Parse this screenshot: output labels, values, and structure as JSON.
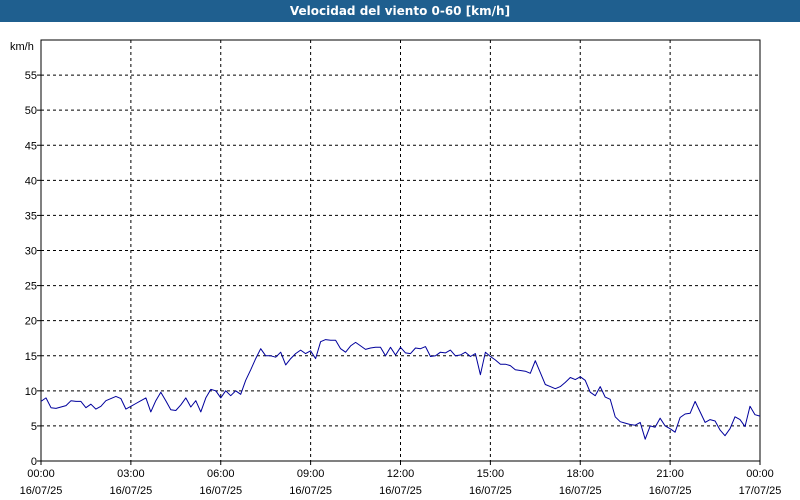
{
  "window": {
    "title": "Velocidad del viento 0-60 [km/h]"
  },
  "chart_data": {
    "type": "line",
    "title": "Velocidad del viento 0-60 [km/h]",
    "ylabel": "km/h",
    "xlabel": "",
    "ylim": [
      0,
      60
    ],
    "yticks": [
      0,
      5,
      10,
      15,
      20,
      25,
      30,
      35,
      40,
      45,
      50,
      55
    ],
    "xlim": [
      "16/07/25 00:00",
      "17/07/25 00:00"
    ],
    "xticks": [
      {
        "time": "00:00",
        "date": "16/07/25"
      },
      {
        "time": "03:00",
        "date": "16/07/25"
      },
      {
        "time": "06:00",
        "date": "16/07/25"
      },
      {
        "time": "09:00",
        "date": "16/07/25"
      },
      {
        "time": "12:00",
        "date": "16/07/25"
      },
      {
        "time": "15:00",
        "date": "16/07/25"
      },
      {
        "time": "18:00",
        "date": "16/07/25"
      },
      {
        "time": "21:00",
        "date": "16/07/25"
      },
      {
        "time": "00:00",
        "date": "17/07/25"
      }
    ],
    "grid": true,
    "series": [
      {
        "color": "#00009c",
        "points": [
          [
            "00:00",
            8.5
          ],
          [
            "00:10",
            9.0
          ],
          [
            "00:20",
            7.6
          ],
          [
            "00:30",
            7.5
          ],
          [
            "00:40",
            7.7
          ],
          [
            "00:50",
            7.9
          ],
          [
            "01:00",
            8.6
          ],
          [
            "01:10",
            8.5
          ],
          [
            "01:20",
            8.5
          ],
          [
            "01:30",
            7.6
          ],
          [
            "01:40",
            8.1
          ],
          [
            "01:50",
            7.4
          ],
          [
            "02:00",
            7.8
          ],
          [
            "02:10",
            8.6
          ],
          [
            "02:20",
            8.9
          ],
          [
            "02:30",
            9.2
          ],
          [
            "02:40",
            8.9
          ],
          [
            "02:50",
            7.4
          ],
          [
            "03:00",
            7.8
          ],
          [
            "03:10",
            8.2
          ],
          [
            "03:20",
            8.6
          ],
          [
            "03:30",
            9.0
          ],
          [
            "03:40",
            7.0
          ],
          [
            "03:50",
            8.6
          ],
          [
            "04:00",
            9.8
          ],
          [
            "04:10",
            8.6
          ],
          [
            "04:20",
            7.3
          ],
          [
            "04:30",
            7.2
          ],
          [
            "04:40",
            8.0
          ],
          [
            "04:50",
            9.0
          ],
          [
            "05:00",
            7.7
          ],
          [
            "05:10",
            8.6
          ],
          [
            "05:20",
            7.0
          ],
          [
            "05:30",
            9.0
          ],
          [
            "05:40",
            10.2
          ],
          [
            "05:50",
            10.0
          ],
          [
            "06:00",
            9.0
          ],
          [
            "06:10",
            10.0
          ],
          [
            "06:20",
            9.3
          ],
          [
            "06:30",
            10.0
          ],
          [
            "06:40",
            9.5
          ],
          [
            "06:50",
            11.5
          ],
          [
            "07:00",
            13.0
          ],
          [
            "07:10",
            14.6
          ],
          [
            "07:20",
            16.0
          ],
          [
            "07:30",
            15.0
          ],
          [
            "07:40",
            15.0
          ],
          [
            "07:50",
            14.8
          ],
          [
            "08:00",
            15.5
          ],
          [
            "08:10",
            13.7
          ],
          [
            "08:20",
            14.6
          ],
          [
            "08:30",
            15.3
          ],
          [
            "08:40",
            15.8
          ],
          [
            "08:50",
            15.3
          ],
          [
            "09:00",
            15.7
          ],
          [
            "09:10",
            14.6
          ],
          [
            "09:20",
            17.0
          ],
          [
            "09:30",
            17.3
          ],
          [
            "09:40",
            17.2
          ],
          [
            "09:50",
            17.2
          ],
          [
            "10:00",
            16.0
          ],
          [
            "10:10",
            15.5
          ],
          [
            "10:20",
            16.4
          ],
          [
            "10:30",
            16.9
          ],
          [
            "10:40",
            16.4
          ],
          [
            "10:50",
            15.9
          ],
          [
            "11:00",
            16.1
          ],
          [
            "11:10",
            16.2
          ],
          [
            "11:20",
            16.2
          ],
          [
            "11:30",
            15.0
          ],
          [
            "11:40",
            16.2
          ],
          [
            "11:50",
            15.1
          ],
          [
            "12:00",
            16.2
          ],
          [
            "12:10",
            15.4
          ],
          [
            "12:20",
            15.3
          ],
          [
            "12:30",
            16.1
          ],
          [
            "12:40",
            16.0
          ],
          [
            "12:50",
            16.3
          ],
          [
            "13:00",
            14.9
          ],
          [
            "13:10",
            15.0
          ],
          [
            "13:20",
            15.5
          ],
          [
            "13:30",
            15.4
          ],
          [
            "13:40",
            15.8
          ],
          [
            "13:50",
            15.0
          ],
          [
            "14:00",
            15.1
          ],
          [
            "14:10",
            15.5
          ],
          [
            "14:20",
            14.9
          ],
          [
            "14:30",
            15.3
          ],
          [
            "14:40",
            12.3
          ],
          [
            "14:50",
            15.5
          ],
          [
            "15:00",
            14.9
          ],
          [
            "15:10",
            14.4
          ],
          [
            "15:20",
            13.8
          ],
          [
            "15:30",
            13.8
          ],
          [
            "15:40",
            13.6
          ],
          [
            "15:50",
            13.0
          ],
          [
            "16:00",
            12.9
          ],
          [
            "16:10",
            12.8
          ],
          [
            "16:20",
            12.5
          ],
          [
            "16:30",
            14.3
          ],
          [
            "16:40",
            12.6
          ],
          [
            "16:50",
            10.9
          ],
          [
            "17:00",
            10.6
          ],
          [
            "17:10",
            10.3
          ],
          [
            "17:20",
            10.6
          ],
          [
            "17:30",
            11.2
          ],
          [
            "17:40",
            11.9
          ],
          [
            "17:50",
            11.6
          ],
          [
            "18:00",
            12.0
          ],
          [
            "18:10",
            11.5
          ],
          [
            "18:20",
            9.8
          ],
          [
            "18:30",
            9.3
          ],
          [
            "18:40",
            10.6
          ],
          [
            "18:50",
            9.1
          ],
          [
            "19:00",
            8.8
          ],
          [
            "19:10",
            6.3
          ],
          [
            "19:20",
            5.6
          ],
          [
            "19:30",
            5.4
          ],
          [
            "19:40",
            5.2
          ],
          [
            "19:50",
            5.1
          ],
          [
            "20:00",
            5.5
          ],
          [
            "20:10",
            3.1
          ],
          [
            "20:20",
            5.0
          ],
          [
            "20:30",
            4.8
          ],
          [
            "20:40",
            6.1
          ],
          [
            "20:50",
            5.0
          ],
          [
            "21:00",
            4.6
          ],
          [
            "21:10",
            4.1
          ],
          [
            "21:20",
            6.2
          ],
          [
            "21:30",
            6.7
          ],
          [
            "21:40",
            6.8
          ],
          [
            "21:50",
            8.5
          ],
          [
            "22:00",
            7.0
          ],
          [
            "22:10",
            5.5
          ],
          [
            "22:20",
            5.9
          ],
          [
            "22:30",
            5.7
          ],
          [
            "22:40",
            4.4
          ],
          [
            "22:50",
            3.6
          ],
          [
            "23:00",
            4.6
          ],
          [
            "23:10",
            6.3
          ],
          [
            "23:20",
            5.9
          ],
          [
            "23:30",
            4.9
          ],
          [
            "23:40",
            7.8
          ],
          [
            "23:50",
            6.6
          ],
          [
            "24:00",
            6.4
          ]
        ]
      }
    ]
  }
}
